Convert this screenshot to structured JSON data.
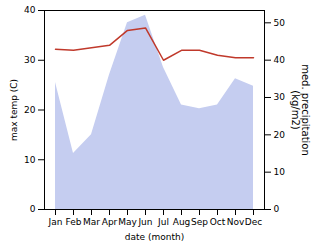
{
  "chart_data": {
    "type": "line",
    "categories": [
      "Jan",
      "Feb",
      "Mar",
      "Apr",
      "May",
      "Jun",
      "Jul",
      "Aug",
      "Sep",
      "Oct",
      "Nov",
      "Dec"
    ],
    "series": [
      {
        "type": "area",
        "axis": "y2",
        "color": "#c5cdf0",
        "values": [
          34,
          15,
          20,
          36,
          50,
          52,
          38,
          28,
          27,
          28,
          35,
          33
        ]
      },
      {
        "type": "line",
        "color": "#c0392b",
        "values": [
          32.2,
          32.0,
          32.5,
          33.0,
          36.0,
          36.5,
          30.0,
          32.0,
          32.0,
          31.0,
          30.5,
          30.5
        ]
      }
    ],
    "xlabel": "date (month)",
    "ylabel": "max temp (C)",
    "y2label": "med. precipitation\n(kg/m2)",
    "ylim": [
      0,
      40
    ],
    "yticks": [
      0,
      10,
      20,
      30,
      40
    ],
    "y2lim": [
      0,
      53.3
    ],
    "y2ticks": [
      0,
      10,
      20,
      30,
      40,
      50
    ],
    "grid": false
  }
}
